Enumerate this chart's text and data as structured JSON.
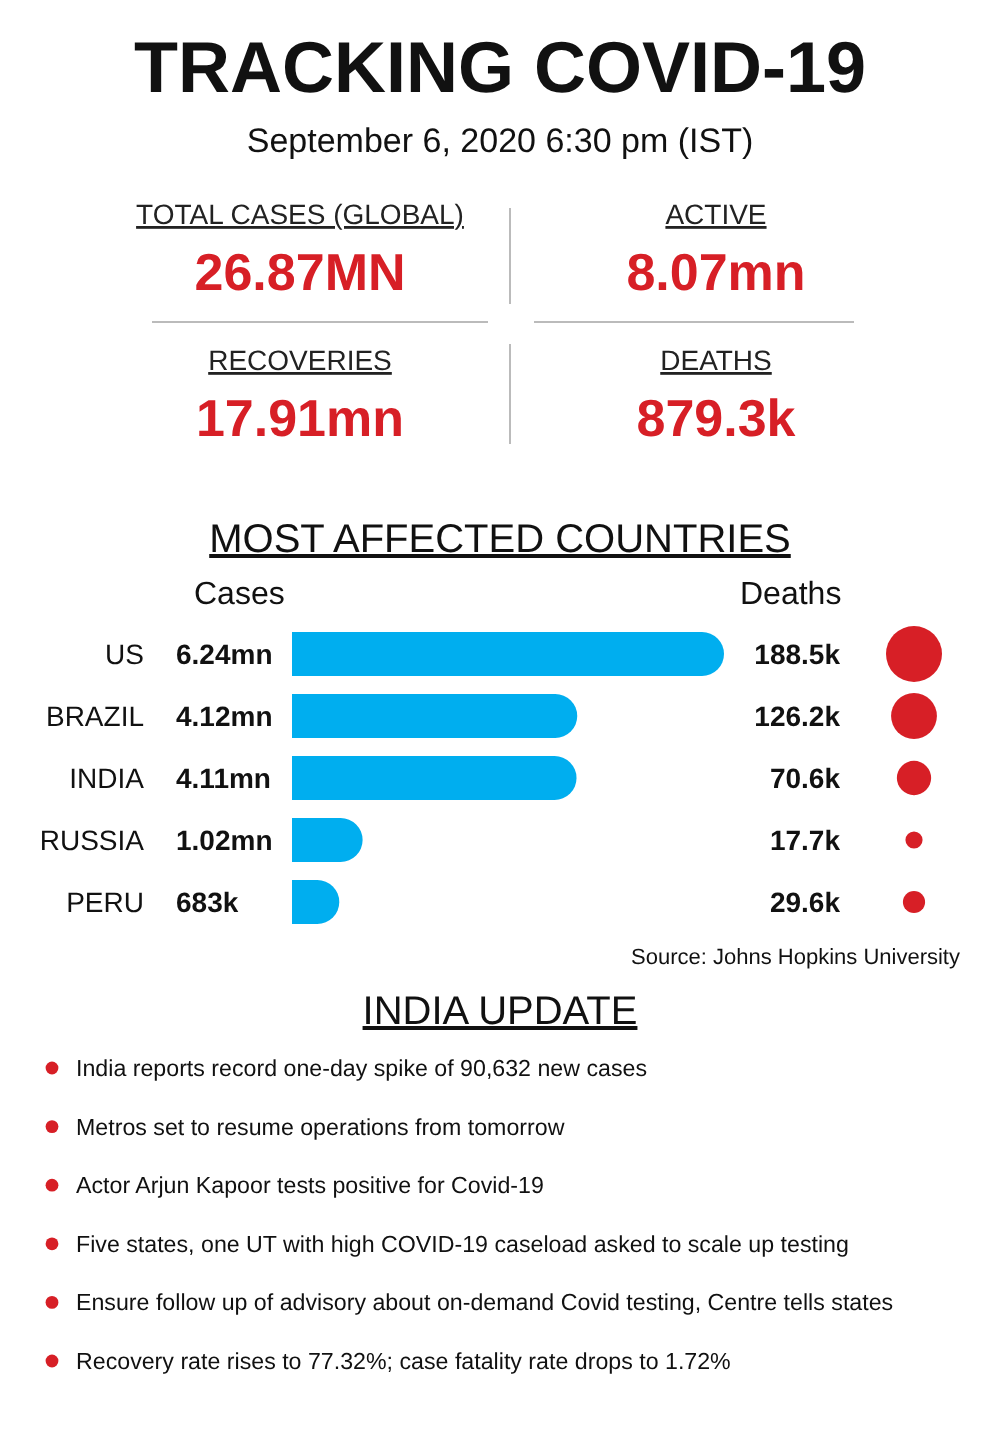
{
  "chart_data": [
    {
      "type": "other",
      "title": "TRACKING COVID-19",
      "subtitle": "September 6, 2020 6:30 pm (IST)",
      "categories": [
        "TOTAL CASES (GLOBAL)",
        "ACTIVE",
        "RECOVERIES",
        "DEATHS"
      ],
      "value_labels": [
        "26.87MN",
        "8.07mn",
        "17.91mn",
        "879.3k"
      ],
      "color": "#d71f26"
    },
    {
      "type": "bar",
      "orientation": "horizontal",
      "title": "MOST AFFECTED COUNTRIES",
      "xlabel": "Cases",
      "categories": [
        "US",
        "BRAZIL",
        "INDIA",
        "RUSSIA",
        "PERU"
      ],
      "values": [
        6240000,
        4120000,
        4110000,
        1020000,
        683000
      ],
      "value_labels": [
        "6.24mn",
        "4.12mn",
        "4.11mn",
        "1.02mn",
        "683k"
      ],
      "color": "#00aeef"
    },
    {
      "type": "other",
      "xlabel": "Deaths",
      "values": [
        188500,
        126200,
        70600,
        17700,
        29600
      ],
      "value_labels": [
        "188.5k",
        "126.2k",
        "70.6k",
        "17.7k",
        "29.6k"
      ],
      "color": "#d71f26",
      "annotations": [
        "Source: Johns Hopkins University"
      ]
    },
    {
      "type": "other",
      "title": "INDIA UPDATE",
      "annotations": [
        "India reports record one-day spike of 90,632 new cases",
        "Metros set to resume operations from tomorrow",
        "Actor Arjun Kapoor tests positive for Covid-19",
        "Five states, one UT with high COVID-19 caseload asked to scale up testing",
        "Ensure follow up of advisory about on-demand Covid testing, Centre tells states",
        "Recovery rate rises to 77.32%; case fatality rate drops to 1.72%"
      ],
      "color": "#d71f26"
    }
  ]
}
